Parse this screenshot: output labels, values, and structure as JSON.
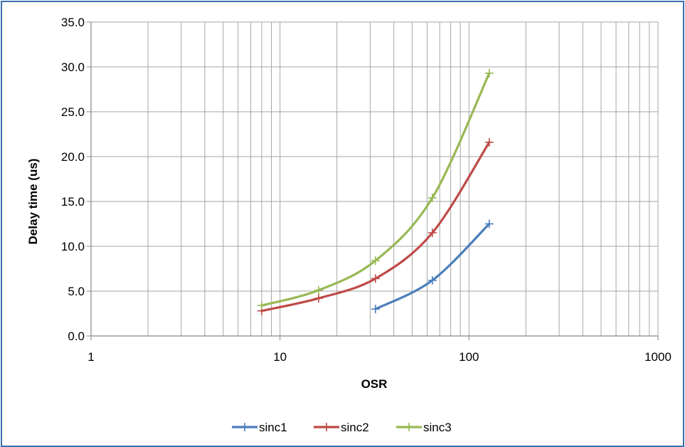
{
  "chart_data": {
    "type": "line",
    "title": "",
    "xlabel": "OSR",
    "ylabel": "Delay time (us)",
    "x_scale": "log",
    "xlim": [
      1,
      1000
    ],
    "ylim": [
      0,
      35
    ],
    "x_ticks": [
      "1",
      "10",
      "100",
      "1000"
    ],
    "y_ticks": [
      "0.0",
      "5.0",
      "10.0",
      "15.0",
      "20.0",
      "25.0",
      "30.0",
      "35.0"
    ],
    "grid": true,
    "legend_position": "bottom",
    "series": [
      {
        "name": "sinc1",
        "color": "#4a7ebb",
        "x": [
          32,
          64,
          128
        ],
        "y": [
          3.0,
          6.2,
          12.5
        ]
      },
      {
        "name": "sinc2",
        "color": "#be4b48",
        "x": [
          8,
          16,
          32,
          64,
          128
        ],
        "y": [
          2.8,
          4.2,
          6.4,
          11.5,
          21.6
        ]
      },
      {
        "name": "sinc3",
        "color": "#98b954",
        "x": [
          8,
          16,
          32,
          64,
          128
        ],
        "y": [
          3.4,
          5.1,
          8.4,
          15.4,
          29.3
        ]
      }
    ]
  }
}
